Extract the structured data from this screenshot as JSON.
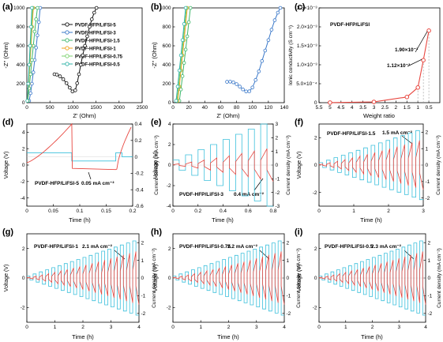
{
  "colors": {
    "black": "#111111",
    "blue": "#3a78c9",
    "green": "#3db66a",
    "orange": "#f0a21a",
    "lightgreen": "#7bd16c",
    "teal": "#32b4a8",
    "red": "#e8463f",
    "cyan": "#3cc0dc"
  },
  "labels": {
    "a": "(a)",
    "b": "(b)",
    "c": "(c)",
    "d": "(d)",
    "e": "(e)",
    "f": "(f)",
    "g": "(g)",
    "h": "(h)",
    "i": "(i)",
    "ohm_im": "-Z'' (Ohm)",
    "ohm_re": "Z' (Ohm)",
    "cond": "Ionic conductivity (S cm⁻¹)",
    "weight": "Weight ratio",
    "voltage": "Voltage (V)",
    "current": "Current density (mA cm⁻²)",
    "time": "Time (h)"
  },
  "legend_a": [
    "PVDF-HFP/LiFSI-5",
    "PVDF-HFP/LiFSI-3",
    "PVDF-HFP/LiFSI-1.5",
    "PVDF-HFP/LiFSI-1",
    "PVDF-HFP/LiFSI-0.75",
    "PVDF-HFP/LiFSI-0.5"
  ],
  "annotations": {
    "c_title": "PVDF-HFP/LiFSI",
    "c_hi": "1.90×10⁻³",
    "c_lo": "1.12×10⁻³",
    "d_title": "PVDF-HFP/LiFSI-5",
    "d_cur": "0.05 mA cm⁻²",
    "e_title": "PVDF-HFP/LiFSI-3",
    "e_cur": "0.4 mA cm⁻²",
    "f_title": "PVDF-HFP/LiFSI-1.5",
    "f_cur": "1.5 mA cm⁻²",
    "g_title": "PVDF-HFP/LiFSI-1",
    "g_cur": "2.1 mA cm⁻²",
    "h_title": "PVDF-HFP/LiFSI-0.75",
    "h_cur": "2.2 mA cm⁻²",
    "i_title": "PVDF-HFP/LiFSI-0.5",
    "i_cur": "2.3 mA cm⁻²"
  },
  "chart_data": [
    {
      "panel": "a",
      "type": "scatter",
      "xlabel": "Z' (Ohm)",
      "ylabel": "-Z'' (Ohm)",
      "xlim": [
        0,
        2500
      ],
      "ylim": [
        0,
        1000
      ],
      "xticks": [
        0,
        500,
        1000,
        1500,
        2000,
        2500
      ],
      "yticks": [
        0,
        200,
        400,
        600,
        800,
        1000
      ],
      "series": [
        {
          "name": "PVDF-HFP/LiFSI-5",
          "color": "#111111",
          "x": [
            600,
            650,
            720,
            790,
            860,
            930,
            990,
            1050,
            1090,
            1130,
            1170,
            1210,
            1260,
            1310,
            1360,
            1410,
            1460,
            1510
          ],
          "y": [
            300,
            296,
            278,
            248,
            206,
            158,
            118,
            130,
            205,
            300,
            400,
            500,
            600,
            700,
            800,
            880,
            950,
            1000
          ]
        },
        {
          "name": "PVDF-HFP/LiFSI-3",
          "color": "#3a78c9",
          "x": [
            50,
            80,
            110,
            140,
            170,
            200,
            230,
            260,
            290
          ],
          "y": [
            20,
            100,
            200,
            320,
            450,
            580,
            710,
            850,
            1000
          ]
        },
        {
          "name": "PVDF-HFP/LiFSI-1.5",
          "color": "#3db66a",
          "x": [
            20,
            50,
            80,
            110,
            140,
            170,
            200,
            230
          ],
          "y": [
            20,
            150,
            300,
            450,
            600,
            750,
            880,
            1000
          ]
        },
        {
          "name": "PVDF-HFP/LiFSI-1",
          "color": "#f0a21a",
          "x": [
            15,
            40,
            65,
            90,
            115,
            140
          ],
          "y": [
            20,
            200,
            400,
            600,
            800,
            1000
          ]
        },
        {
          "name": "PVDF-HFP/LiFSI-0.75",
          "color": "#7bd16c",
          "x": [
            12,
            35,
            58,
            81,
            104,
            125
          ],
          "y": [
            20,
            200,
            400,
            600,
            800,
            1000
          ]
        },
        {
          "name": "PVDF-HFP/LiFSI-0.5",
          "color": "#32b4a8",
          "x": [
            10,
            30,
            50,
            70,
            90,
            110
          ],
          "y": [
            20,
            200,
            400,
            600,
            800,
            1000
          ]
        }
      ]
    },
    {
      "panel": "b",
      "type": "scatter",
      "xlabel": "Z' (Ohm)",
      "ylabel": "-Z'' (Ohm)",
      "xlim": [
        0,
        140
      ],
      "ylim": [
        0,
        1000
      ],
      "xticks": [
        0,
        20,
        40,
        60,
        80,
        100,
        120,
        140
      ],
      "yticks": [
        0,
        200,
        400,
        600,
        800,
        1000
      ],
      "series": [
        {
          "name": "PVDF-HFP/LiFSI-3",
          "color": "#3a78c9",
          "x": [
            68,
            72,
            76,
            80,
            84,
            88,
            92,
            96,
            100,
            104,
            108,
            112,
            116,
            120,
            124,
            128,
            132,
            135
          ],
          "y": [
            220,
            222,
            214,
            196,
            170,
            140,
            118,
            120,
            160,
            240,
            330,
            440,
            550,
            660,
            770,
            870,
            950,
            1000
          ]
        },
        {
          "name": "PVDF-HFP/LiFSI-1.5",
          "color": "#3db66a",
          "x": [
            8,
            10,
            12,
            14,
            16,
            18,
            20,
            22
          ],
          "y": [
            20,
            140,
            280,
            420,
            560,
            700,
            850,
            1000
          ]
        },
        {
          "name": "PVDF-HFP/LiFSI-1",
          "color": "#f0a21a",
          "x": [
            6,
            8,
            10,
            12,
            14,
            16,
            18
          ],
          "y": [
            20,
            170,
            340,
            500,
            660,
            830,
            1000
          ]
        },
        {
          "name": "PVDF-HFP/LiFSI-0.75",
          "color": "#7bd16c",
          "x": [
            5,
            7,
            9,
            11,
            13,
            15,
            17
          ],
          "y": [
            20,
            170,
            340,
            500,
            660,
            830,
            1000
          ]
        },
        {
          "name": "PVDF-HFP/LiFSI-0.5",
          "color": "#32b4a8",
          "x": [
            4,
            6,
            8,
            10,
            12,
            14,
            16
          ],
          "y": [
            20,
            170,
            340,
            500,
            660,
            830,
            1000
          ]
        }
      ]
    },
    {
      "panel": "c",
      "type": "line",
      "xlabel": "Weight ratio",
      "ylabel": "Ionic conductivity (S cm⁻¹)",
      "xlim": [
        5.5,
        0
      ],
      "ylim": [
        0,
        0.0025
      ],
      "xticks": [
        5.5,
        5,
        4.5,
        4,
        3.5,
        3,
        2.5,
        2,
        1.5,
        1,
        0.5
      ],
      "ytick_labels": [
        "0",
        "5.0×10⁻⁴",
        "1.0×10⁻³",
        "1.5×10⁻³",
        "2.0×10⁻³",
        "2.5×10⁻³"
      ],
      "yticks": [
        0,
        0.0005,
        0.001,
        0.0015,
        0.002,
        0.0025
      ],
      "series": [
        {
          "name": "PVDF-HFP/LiFSI",
          "color": "#e8463f",
          "x": [
            5,
            3,
            1.5,
            1,
            0.75,
            0.5
          ],
          "y": [
            2e-06,
            2e-05,
            0.00015,
            0.0004,
            0.00112,
            0.0019
          ]
        }
      ]
    },
    {
      "panel": "d",
      "type": "line",
      "xlabel": "Time (h)",
      "ylabel": "Voltage (V)",
      "y2label": "Current density (mA cm⁻²)",
      "xlim": [
        0,
        0.2
      ],
      "ylim": [
        -5,
        5
      ],
      "y2lim": [
        -0.6,
        0.4
      ],
      "xticks": [
        0,
        0.05,
        0.1,
        0.15,
        0.2
      ],
      "yticks": [
        -4,
        -2,
        0,
        2,
        4
      ],
      "y2ticks": [
        -0.6,
        -0.4,
        -0.2,
        0,
        0.2,
        0.4
      ]
    },
    {
      "panel": "e",
      "type": "line",
      "xlabel": "Time (h)",
      "ylabel": "Voltage (V)",
      "y2label": "Current density (mA cm⁻²)",
      "xlim": [
        0,
        0.8
      ],
      "ylim": [
        -4,
        4
      ],
      "y2lim": [
        -3,
        3
      ],
      "xticks": [
        0,
        0.2,
        0.4,
        0.6,
        0.8
      ],
      "yticks": [
        -4,
        -2,
        0,
        2,
        4
      ],
      "y2ticks": [
        -3,
        -2,
        -1,
        0,
        1,
        2,
        3
      ]
    },
    {
      "panel": "f",
      "type": "line",
      "xlabel": "Time (h)",
      "ylabel": "Voltage (V)",
      "y2label": "Current density (mA cm⁻²)",
      "xlim": [
        0,
        3
      ],
      "ylim": [
        -3,
        3
      ],
      "y2lim": [
        -2.5,
        2.5
      ],
      "xticks": [
        0,
        1,
        2,
        3
      ],
      "yticks": [
        -2,
        0,
        2
      ],
      "y2ticks": [
        -2,
        -1,
        0,
        1,
        2
      ]
    },
    {
      "panel": "g",
      "type": "line",
      "xlabel": "Time (h)",
      "ylabel": "Voltage (V)",
      "y2label": "Current density (mA cm⁻²)",
      "xlim": [
        0,
        4
      ],
      "ylim": [
        -3,
        3
      ],
      "y2lim": [
        -2.5,
        2.5
      ],
      "xticks": [
        0,
        1,
        2,
        3,
        4
      ],
      "yticks": [
        -2,
        0,
        2
      ],
      "y2ticks": [
        -2,
        -1,
        0,
        1,
        2
      ]
    },
    {
      "panel": "h",
      "type": "line",
      "xlabel": "Time (h)",
      "ylabel": "Voltage (V)",
      "y2label": "Current density (mA cm⁻²)",
      "xlim": [
        0,
        4
      ],
      "ylim": [
        -3,
        3
      ],
      "y2lim": [
        -2.5,
        2.5
      ],
      "xticks": [
        0,
        1,
        2,
        3,
        4
      ],
      "yticks": [
        -2,
        0,
        2
      ],
      "y2ticks": [
        -2,
        -1,
        0,
        1,
        2
      ]
    },
    {
      "panel": "i",
      "type": "line",
      "xlabel": "Time (h)",
      "ylabel": "Voltage (V)",
      "y2label": "Current density (mA cm⁻²)",
      "xlim": [
        0,
        4
      ],
      "ylim": [
        -3,
        3
      ],
      "y2lim": [
        -2.5,
        2.5
      ],
      "xticks": [
        0,
        1,
        2,
        3,
        4
      ],
      "yticks": [
        -2,
        0,
        2
      ],
      "y2ticks": [
        -2,
        -1,
        0,
        1,
        2
      ]
    }
  ]
}
